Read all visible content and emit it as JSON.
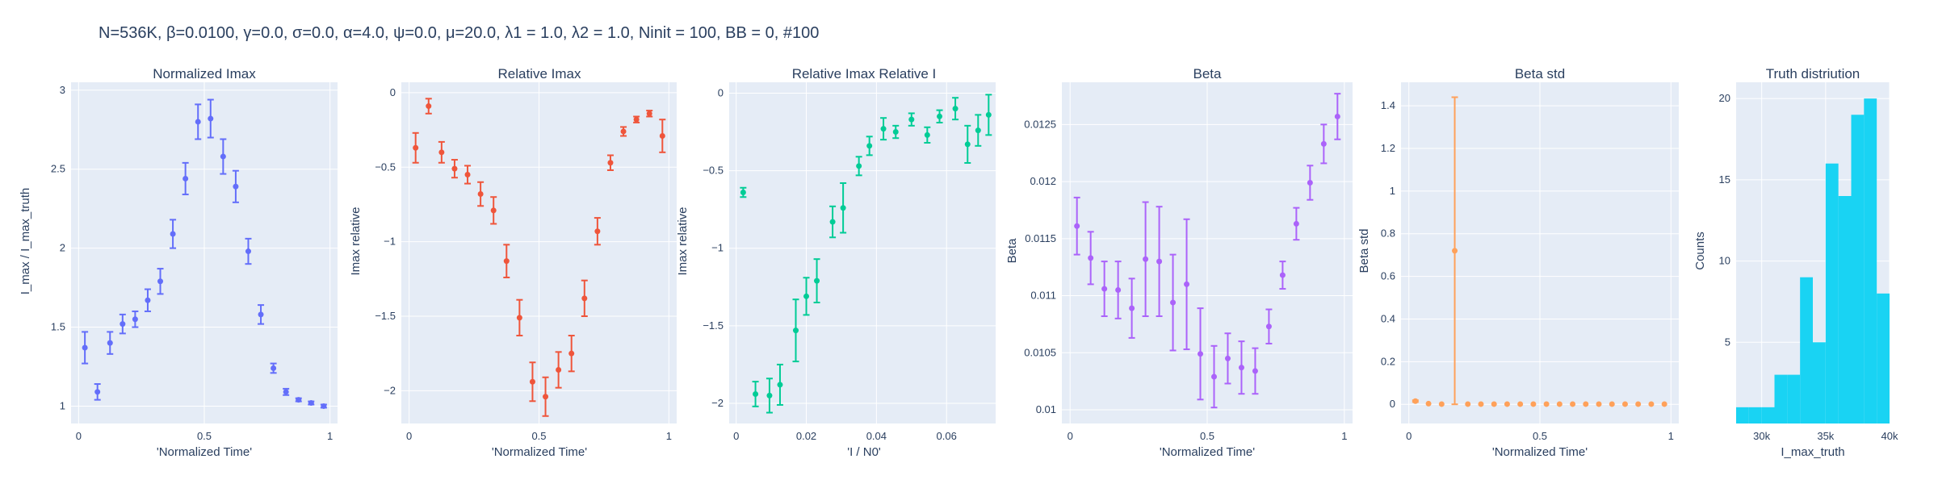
{
  "figure_title": "N=536K, β=0.0100, γ=0.0, σ=0.0,  α=4.0, ψ=0.0, μ=20.0, λ1 = 1.0, λ2 = 1.0, Ninit = 100, BB = 0, #100",
  "chart_data": [
    {
      "type": "scatter",
      "title": "Normalized Imax",
      "xlabel": "'Normalized Time'",
      "ylabel": "I_max / I_max_truth",
      "color": "#636efa",
      "xlim": [
        -0.03,
        1.03
      ],
      "ylim": [
        0.89,
        3.05
      ],
      "xticks": [
        0,
        0.5,
        1
      ],
      "xticklabels": [
        "0",
        "0.5",
        "1"
      ],
      "yticks": [
        1,
        1.5,
        2,
        2.5,
        3
      ],
      "yticklabels": [
        "1",
        "1.5",
        "2",
        "2.5",
        "3"
      ],
      "x": [
        0.025,
        0.075,
        0.125,
        0.175,
        0.225,
        0.275,
        0.325,
        0.375,
        0.425,
        0.475,
        0.525,
        0.575,
        0.625,
        0.675,
        0.725,
        0.775,
        0.825,
        0.875,
        0.925,
        0.975
      ],
      "y": [
        1.37,
        1.09,
        1.4,
        1.52,
        1.55,
        1.67,
        1.79,
        2.09,
        2.44,
        2.8,
        2.82,
        2.58,
        2.39,
        1.98,
        1.58,
        1.24,
        1.09,
        1.04,
        1.02,
        1.0
      ],
      "err": [
        0.1,
        0.05,
        0.07,
        0.06,
        0.05,
        0.07,
        0.08,
        0.09,
        0.1,
        0.11,
        0.12,
        0.11,
        0.1,
        0.08,
        0.06,
        0.03,
        0.02,
        0.01,
        0.01,
        0.01
      ]
    },
    {
      "type": "scatter",
      "title": "Relative Imax",
      "xlabel": "'Normalized Time'",
      "ylabel": "Imax relative",
      "color": "#ef553b",
      "xlim": [
        -0.03,
        1.03
      ],
      "ylim": [
        -2.22,
        0.07
      ],
      "xticks": [
        0,
        0.5,
        1
      ],
      "xticklabels": [
        "0",
        "0.5",
        "1"
      ],
      "yticks": [
        -2,
        -1.5,
        -1,
        -0.5,
        0
      ],
      "yticklabels": [
        "−2",
        "−1.5",
        "−1",
        "−0.5",
        "0"
      ],
      "x": [
        0.025,
        0.075,
        0.125,
        0.175,
        0.225,
        0.275,
        0.325,
        0.375,
        0.425,
        0.475,
        0.525,
        0.575,
        0.625,
        0.675,
        0.725,
        0.775,
        0.825,
        0.875,
        0.925,
        0.975
      ],
      "y": [
        -0.37,
        -0.09,
        -0.4,
        -0.51,
        -0.55,
        -0.68,
        -0.79,
        -1.13,
        -1.51,
        -1.94,
        -2.04,
        -1.86,
        -1.75,
        -1.38,
        -0.93,
        -0.47,
        -0.26,
        -0.18,
        -0.14,
        -0.29
      ],
      "err": [
        0.1,
        0.05,
        0.07,
        0.06,
        0.06,
        0.08,
        0.09,
        0.11,
        0.12,
        0.13,
        0.13,
        0.12,
        0.12,
        0.12,
        0.09,
        0.05,
        0.03,
        0.02,
        0.02,
        0.11
      ]
    },
    {
      "type": "scatter",
      "title": "Relative Imax Relative I",
      "xlabel": "'I / N0'",
      "ylabel": "Imax relative",
      "color": "#00cc96",
      "xlim": [
        -0.002,
        0.074
      ],
      "ylim": [
        -2.13,
        0.07
      ],
      "xticks": [
        0,
        0.02,
        0.04,
        0.06
      ],
      "xticklabels": [
        "0",
        "0.02",
        "0.04",
        "0.06"
      ],
      "yticks": [
        -2,
        -1.5,
        -1,
        -0.5,
        0
      ],
      "yticklabels": [
        "−2",
        "−1.5",
        "−1",
        "−0.5",
        "0"
      ],
      "x": [
        0.002,
        0.0055,
        0.0095,
        0.0125,
        0.017,
        0.02,
        0.023,
        0.0275,
        0.0305,
        0.035,
        0.038,
        0.042,
        0.0455,
        0.05,
        0.0545,
        0.058,
        0.0625,
        0.066,
        0.069,
        0.072
      ],
      "y": [
        -0.64,
        -1.94,
        -1.95,
        -1.88,
        -1.53,
        -1.31,
        -1.21,
        -0.83,
        -0.74,
        -0.47,
        -0.34,
        -0.23,
        -0.25,
        -0.17,
        -0.27,
        -0.15,
        -0.1,
        -0.33,
        -0.24,
        -0.14
      ],
      "err": [
        0.03,
        0.08,
        0.11,
        0.13,
        0.2,
        0.12,
        0.14,
        0.1,
        0.16,
        0.06,
        0.06,
        0.07,
        0.04,
        0.04,
        0.05,
        0.04,
        0.07,
        0.12,
        0.1,
        0.13
      ]
    },
    {
      "type": "scatter",
      "title": "Beta",
      "xlabel": "'Normalized Time'",
      "ylabel": "Beta",
      "color": "#ab63fa",
      "xlim": [
        -0.03,
        1.03
      ],
      "ylim": [
        0.00988,
        0.01287
      ],
      "xticks": [
        0,
        0.5,
        1
      ],
      "xticklabels": [
        "0",
        "0.5",
        "1"
      ],
      "yticks": [
        0.01,
        0.0105,
        0.011,
        0.0115,
        0.012,
        0.0125
      ],
      "yticklabels": [
        "0.01",
        "0.0105",
        "0.011",
        "0.0115",
        "0.012",
        "0.0125"
      ],
      "x": [
        0.025,
        0.075,
        0.125,
        0.175,
        0.225,
        0.275,
        0.325,
        0.375,
        0.425,
        0.475,
        0.525,
        0.575,
        0.625,
        0.675,
        0.725,
        0.775,
        0.825,
        0.875,
        0.925,
        0.975
      ],
      "y": [
        0.01161,
        0.01133,
        0.01106,
        0.01105,
        0.01089,
        0.01132,
        0.0113,
        0.01094,
        0.0111,
        0.01049,
        0.01029,
        0.01045,
        0.01037,
        0.01034,
        0.01073,
        0.01118,
        0.01163,
        0.01199,
        0.01233,
        0.01257
      ],
      "err": [
        0.00025,
        0.00023,
        0.00024,
        0.00025,
        0.00026,
        0.0005,
        0.00048,
        0.00042,
        0.00057,
        0.0004,
        0.00027,
        0.00022,
        0.00023,
        0.0002,
        0.00015,
        0.00012,
        0.00014,
        0.00015,
        0.00017,
        0.0002
      ]
    },
    {
      "type": "scatter",
      "title": "Beta std",
      "xlabel": "'Normalized Time'",
      "ylabel": "Beta std",
      "color": "#ffa15a",
      "xlim": [
        -0.03,
        1.03
      ],
      "ylim": [
        -0.09,
        1.51
      ],
      "xticks": [
        0,
        0.5,
        1
      ],
      "xticklabels": [
        "0",
        "0.5",
        "1"
      ],
      "yticks": [
        0,
        0.2,
        0.4,
        0.6,
        0.8,
        1,
        1.2,
        1.4
      ],
      "yticklabels": [
        "0",
        "0.2",
        "0.4",
        "0.6",
        "0.8",
        "1",
        "1.2",
        "1.4"
      ],
      "x": [
        0.025,
        0.075,
        0.125,
        0.175,
        0.225,
        0.275,
        0.325,
        0.375,
        0.425,
        0.475,
        0.525,
        0.575,
        0.625,
        0.675,
        0.725,
        0.775,
        0.825,
        0.875,
        0.925,
        0.975
      ],
      "y": [
        0.015,
        0.003,
        0.001,
        0.72,
        0.001,
        0.001,
        0.001,
        0.001,
        0.001,
        0.001,
        0.001,
        0.001,
        0.001,
        0.001,
        0.001,
        0.001,
        0.001,
        0.001,
        0.001,
        0.001
      ],
      "err": [
        0.004,
        0,
        0,
        0.72,
        0,
        0,
        0,
        0,
        0,
        0,
        0,
        0,
        0,
        0,
        0,
        0,
        0,
        0,
        0,
        0
      ]
    },
    {
      "type": "bar",
      "title": "Truth distriution",
      "xlabel": "I_max_truth",
      "ylabel": "Counts",
      "color": "#19d3f3",
      "xlim": [
        28000,
        40000
      ],
      "ylim": [
        0,
        21
      ],
      "xticks": [
        30000,
        35000,
        40000
      ],
      "xticklabels": [
        "30k",
        "35k",
        "40k"
      ],
      "yticks": [
        5,
        10,
        15,
        20
      ],
      "yticklabels": [
        "5",
        "10",
        "15",
        "20"
      ],
      "bin_edges": [
        28000,
        29000,
        30000,
        31000,
        32000,
        33000,
        34000,
        35000,
        36000,
        37000,
        38000,
        39000,
        40000
      ],
      "values": [
        1,
        1,
        1,
        3,
        3,
        9,
        5,
        16,
        14,
        19,
        20,
        8
      ]
    }
  ]
}
